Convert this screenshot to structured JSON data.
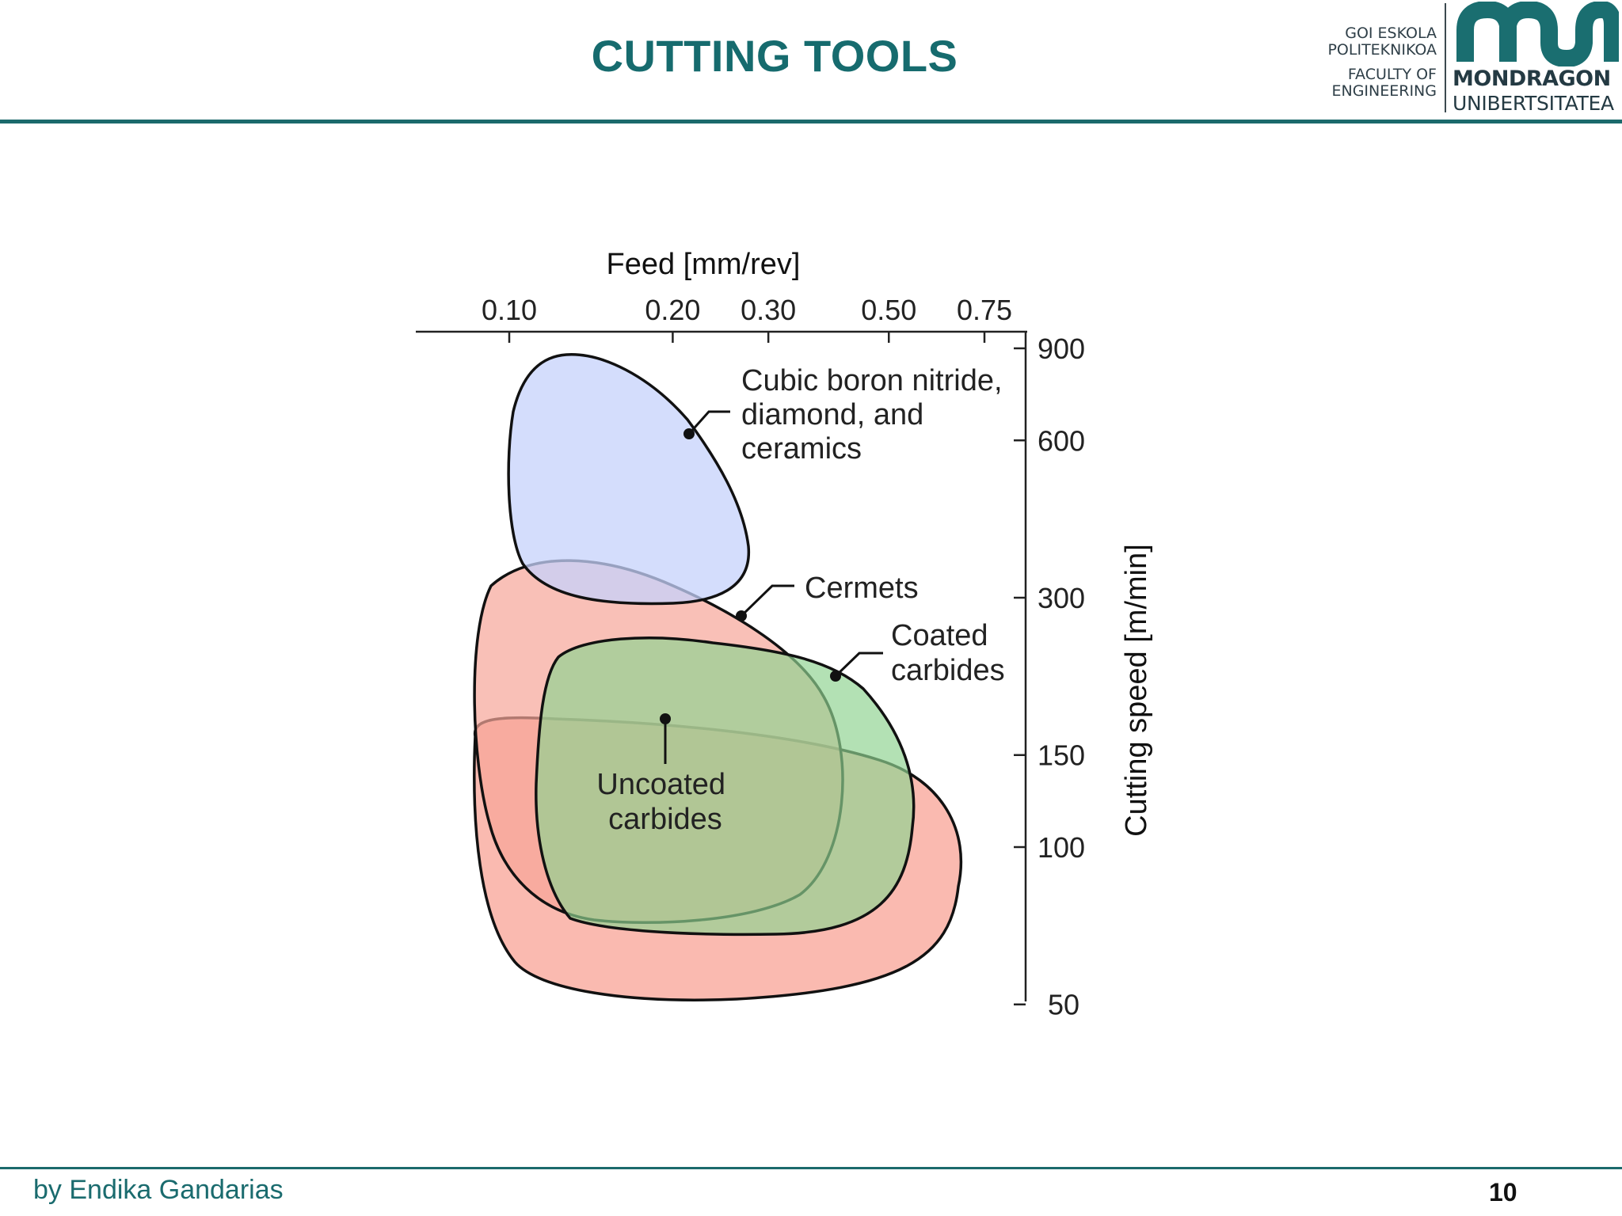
{
  "slide": {
    "title": "CUTTING TOOLS",
    "author": "by Endika Gandarias",
    "page_number": "10"
  },
  "logo": {
    "school_lines": [
      "GOI ESKOLA",
      "POLITEKNIKOA",
      "FACULTY OF",
      "ENGINEERING"
    ],
    "name_line1": "MONDRAGON",
    "name_line2": "UNIBERTSITATEA",
    "brand_color": "#1a6e70"
  },
  "colors": {
    "accent": "#166b6e",
    "cbn_fill": "#c6d2fb",
    "cermets_fill": "#f7a598",
    "coated_fill": "#8fd391",
    "uncoated_fill": "#f79a8a",
    "outline": "#111111"
  },
  "chart_data": {
    "type": "region-map",
    "x_axis": {
      "label": "Feed [mm/rev]",
      "position": "top",
      "scale": "log",
      "ticks": [
        0.1,
        0.2,
        0.3,
        0.5,
        0.75
      ],
      "tick_labels": [
        "0.10",
        "0.20",
        "0.30",
        "0.50",
        "0.75"
      ]
    },
    "y_axis": {
      "label": "Cutting speed [m/min]",
      "position": "right",
      "scale": "log",
      "ticks": [
        50,
        100,
        150,
        300,
        600,
        900
      ],
      "tick_labels": [
        "50",
        "100",
        "150",
        "300",
        "600",
        "900"
      ]
    },
    "regions": [
      {
        "label": "Cubic boron nitride, diamond, and ceramics",
        "feed_range": [
          0.1,
          0.37
        ],
        "speed_range": [
          260,
          880
        ]
      },
      {
        "label": "Cermets",
        "feed_range": [
          0.097,
          0.42
        ],
        "speed_range": [
          160,
          340
        ]
      },
      {
        "label": "Coated carbides",
        "feed_range": [
          0.12,
          0.6
        ],
        "speed_range": [
          65,
          220
        ]
      },
      {
        "label": "Uncoated carbides",
        "feed_range": [
          0.092,
          0.7
        ],
        "speed_range": [
          50,
          160
        ]
      }
    ],
    "grid": false,
    "legend": "none"
  }
}
